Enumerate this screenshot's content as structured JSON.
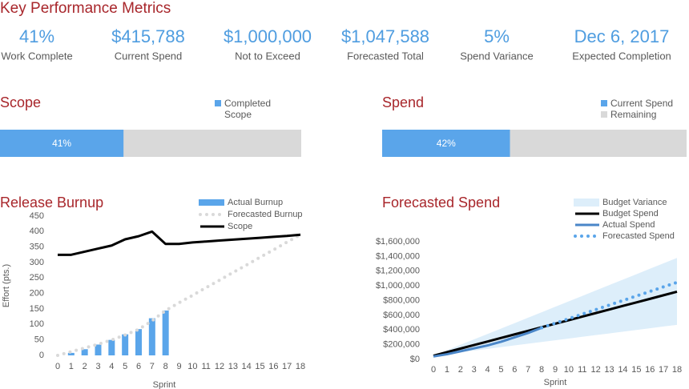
{
  "title": "Key Performance Metrics",
  "kpis": [
    {
      "value": "41%",
      "label": "Work Complete"
    },
    {
      "value": "$415,788",
      "label": "Current Spend"
    },
    {
      "value": "$1,000,000",
      "label": "Not to Exceed"
    },
    {
      "value": "$1,047,588",
      "label": "Forecasted Total"
    },
    {
      "value": "5%",
      "label": "Spend Variance"
    },
    {
      "value": "Dec 6, 2017",
      "label": "Expected Completion"
    }
  ],
  "chart_data": [
    {
      "type": "progress",
      "title": "Scope",
      "xlim": [
        0,
        100
      ],
      "track_color": "#d9d9d9",
      "series": [
        {
          "name": "Completed Scope",
          "color": "#5aa5ea",
          "values": [
            41
          ],
          "value_labels": [
            "41%"
          ]
        }
      ]
    },
    {
      "type": "progress",
      "title": "Spend",
      "xlim": [
        0,
        100
      ],
      "track_color": "#d9d9d9",
      "series": [
        {
          "name": "Current Spend",
          "color": "#5aa5ea",
          "values": [
            42
          ],
          "value_labels": [
            "42%"
          ]
        },
        {
          "name": "Remaining",
          "color": "#d9d9d9",
          "values": [
            58
          ]
        }
      ]
    },
    {
      "type": "combo",
      "title": "Release Burnup",
      "x_label": "Sprint",
      "y_label": "Effort (pts.)",
      "categories": [
        0,
        1,
        2,
        3,
        4,
        5,
        6,
        7,
        8,
        9,
        10,
        11,
        12,
        13,
        14,
        15,
        16,
        17,
        18
      ],
      "ylim": [
        0,
        450
      ],
      "yticks": [
        0,
        50,
        100,
        150,
        200,
        250,
        300,
        350,
        400,
        450
      ],
      "grid": false,
      "series": [
        {
          "name": "Actual Burnup",
          "type": "bar",
          "color": "#5aa5ea",
          "values": [
            0,
            8,
            20,
            35,
            50,
            68,
            85,
            120,
            145,
            null,
            null,
            null,
            null,
            null,
            null,
            null,
            null,
            null,
            null
          ]
        },
        {
          "name": "Forecasted Burnup",
          "type": "line",
          "style": "dotted",
          "color": "#d9d9d9",
          "values": [
            0,
            12,
            24,
            36,
            50,
            66,
            84,
            112,
            145,
            170,
            194,
            219,
            243,
            268,
            292,
            317,
            341,
            366,
            390
          ]
        },
        {
          "name": "Scope",
          "type": "line",
          "style": "solid",
          "color": "#000000",
          "values": [
            325,
            325,
            335,
            345,
            355,
            375,
            385,
            400,
            360,
            360,
            365,
            368,
            371,
            374,
            377,
            380,
            383,
            386,
            390
          ]
        }
      ]
    },
    {
      "type": "line",
      "title": "Forecasted Spend",
      "x_label": "Sprint",
      "categories": [
        0,
        1,
        2,
        3,
        4,
        5,
        6,
        7,
        8,
        9,
        10,
        11,
        12,
        13,
        14,
        15,
        16,
        17,
        18
      ],
      "ylim": [
        0,
        1600000
      ],
      "yticks": [
        {
          "value": 0,
          "label": "$0"
        },
        {
          "value": 200000,
          "label": "$200,000"
        },
        {
          "value": 400000,
          "label": "$400,000"
        },
        {
          "value": 600000,
          "label": "$600,000"
        },
        {
          "value": 800000,
          "label": "$800,000"
        },
        {
          "value": 1000000,
          "label": "$1,000,000"
        },
        {
          "value": 1200000,
          "label": "$1,200,000"
        },
        {
          "value": 1400000,
          "label": "$1,400,000"
        },
        {
          "value": 1600000,
          "label": "$1,600,000"
        }
      ],
      "grid": false,
      "series": [
        {
          "name": "Budget Variance",
          "type": "band",
          "color": "#ddeefa",
          "low": [
            50000,
            73000,
            97000,
            120000,
            143000,
            167000,
            190000,
            213000,
            237000,
            260000,
            283000,
            307000,
            330000,
            353000,
            377000,
            400000,
            423000,
            447000,
            470000
          ],
          "high": [
            50000,
            124000,
            198000,
            272000,
            346000,
            419000,
            493000,
            567000,
            641000,
            715000,
            789000,
            863000,
            937000,
            1011000,
            1084000,
            1158000,
            1232000,
            1306000,
            1380000
          ]
        },
        {
          "name": "Budget Spend",
          "type": "line",
          "style": "solid",
          "color": "#000000",
          "values": [
            50000,
            98000,
            147000,
            195000,
            243000,
            292000,
            340000,
            388000,
            437000,
            485000,
            533000,
            582000,
            630000,
            678000,
            727000,
            775000,
            823000,
            872000,
            920000
          ]
        },
        {
          "name": "Actual Spend",
          "type": "line",
          "style": "solid",
          "color": "#4a86c8",
          "values": [
            40000,
            70000,
            110000,
            150000,
            190000,
            240000,
            300000,
            360000,
            430000,
            null,
            null,
            null,
            null,
            null,
            null,
            null,
            null,
            null,
            null
          ]
        },
        {
          "name": "Forecasted Spend",
          "type": "line",
          "style": "dotted",
          "color": "#5aa5ea",
          "values": [
            null,
            null,
            null,
            null,
            null,
            null,
            null,
            null,
            430000,
            492000,
            553000,
            615000,
            677000,
            739000,
            800000,
            862000,
            924000,
            986000,
            1047588
          ]
        }
      ]
    }
  ]
}
